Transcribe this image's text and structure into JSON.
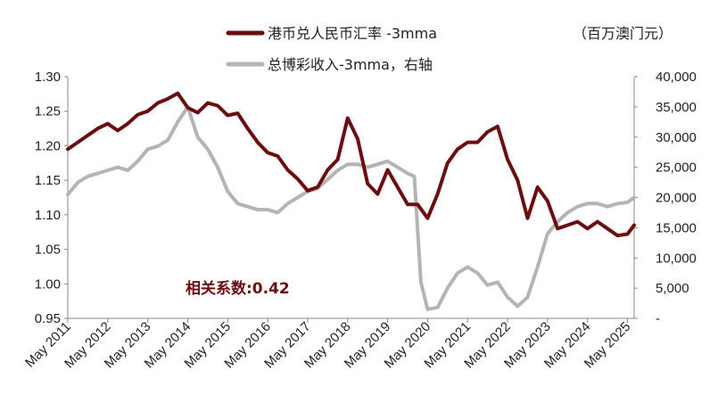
{
  "chart_data": {
    "type": "line",
    "title": "",
    "right_axis_unit": "（百万澳门元）",
    "annotation": "相关系数:0.42",
    "colors": {
      "series1": "#6b0e10",
      "series2": "#b4b4b4",
      "annotation": "#6b0e10"
    },
    "grid": false,
    "legend": "top-center",
    "x_ticks": [
      "May 2011",
      "May 2012",
      "May 2013",
      "May 2014",
      "May 2015",
      "May 2016",
      "May 2017",
      "May 2018",
      "May 2019",
      "May 2020",
      "May 2021",
      "May 2022",
      "May 2023",
      "May 2024",
      "May 2025"
    ],
    "x_range": [
      "2011-05",
      "2025-07"
    ],
    "y_left": {
      "min": 0.95,
      "max": 1.3,
      "ticks": [
        "0.95",
        "1.00",
        "1.05",
        "1.10",
        "1.15",
        "1.20",
        "1.25",
        "1.30"
      ]
    },
    "y_right": {
      "min": 0,
      "max": 40000,
      "ticks": [
        "-",
        "5,000",
        "10,000",
        "15,000",
        "20,000",
        "25,000",
        "30,000",
        "35,000",
        "40,000"
      ]
    },
    "series": [
      {
        "name": "港币兑人民币汇率 -3mma",
        "axis": "left",
        "points": [
          [
            "2011-05",
            1.195
          ],
          [
            "2011-08",
            1.205
          ],
          [
            "2011-11",
            1.215
          ],
          [
            "2012-02",
            1.225
          ],
          [
            "2012-05",
            1.232
          ],
          [
            "2012-08",
            1.222
          ],
          [
            "2012-11",
            1.232
          ],
          [
            "2013-02",
            1.245
          ],
          [
            "2013-05",
            1.25
          ],
          [
            "2013-08",
            1.262
          ],
          [
            "2013-11",
            1.268
          ],
          [
            "2014-02",
            1.276
          ],
          [
            "2014-05",
            1.255
          ],
          [
            "2014-08",
            1.248
          ],
          [
            "2014-11",
            1.262
          ],
          [
            "2015-02",
            1.258
          ],
          [
            "2015-05",
            1.244
          ],
          [
            "2015-08",
            1.247
          ],
          [
            "2015-11",
            1.225
          ],
          [
            "2016-02",
            1.205
          ],
          [
            "2016-05",
            1.19
          ],
          [
            "2016-08",
            1.185
          ],
          [
            "2016-11",
            1.165
          ],
          [
            "2017-02",
            1.152
          ],
          [
            "2017-05",
            1.135
          ],
          [
            "2017-08",
            1.14
          ],
          [
            "2017-11",
            1.165
          ],
          [
            "2018-02",
            1.18
          ],
          [
            "2018-05",
            1.24
          ],
          [
            "2018-08",
            1.21
          ],
          [
            "2018-11",
            1.145
          ],
          [
            "2019-02",
            1.13
          ],
          [
            "2019-05",
            1.165
          ],
          [
            "2019-08",
            1.14
          ],
          [
            "2019-11",
            1.115
          ],
          [
            "2020-02",
            1.115
          ],
          [
            "2020-05",
            1.095
          ],
          [
            "2020-08",
            1.13
          ],
          [
            "2020-11",
            1.175
          ],
          [
            "2021-02",
            1.195
          ],
          [
            "2021-05",
            1.205
          ],
          [
            "2021-08",
            1.205
          ],
          [
            "2021-11",
            1.22
          ],
          [
            "2022-02",
            1.228
          ],
          [
            "2022-05",
            1.18
          ],
          [
            "2022-08",
            1.15
          ],
          [
            "2022-11",
            1.095
          ],
          [
            "2023-02",
            1.14
          ],
          [
            "2023-05",
            1.12
          ],
          [
            "2023-08",
            1.08
          ],
          [
            "2023-11",
            1.085
          ],
          [
            "2024-02",
            1.09
          ],
          [
            "2024-05",
            1.08
          ],
          [
            "2024-08",
            1.09
          ],
          [
            "2024-11",
            1.08
          ],
          [
            "2025-02",
            1.07
          ],
          [
            "2025-05",
            1.072
          ],
          [
            "2025-07",
            1.085
          ]
        ]
      },
      {
        "name": "总博彩收入-3mma，右轴",
        "axis": "right",
        "points": [
          [
            "2011-05",
            20500
          ],
          [
            "2011-08",
            22500
          ],
          [
            "2011-11",
            23500
          ],
          [
            "2012-02",
            24000
          ],
          [
            "2012-05",
            24500
          ],
          [
            "2012-08",
            25000
          ],
          [
            "2012-11",
            24500
          ],
          [
            "2013-02",
            26000
          ],
          [
            "2013-05",
            28000
          ],
          [
            "2013-08",
            28500
          ],
          [
            "2013-11",
            29500
          ],
          [
            "2014-02",
            32500
          ],
          [
            "2014-05",
            35000
          ],
          [
            "2014-08",
            30000
          ],
          [
            "2014-11",
            28000
          ],
          [
            "2015-02",
            25000
          ],
          [
            "2015-05",
            21000
          ],
          [
            "2015-08",
            19000
          ],
          [
            "2015-11",
            18500
          ],
          [
            "2016-02",
            18000
          ],
          [
            "2016-05",
            18000
          ],
          [
            "2016-08",
            17500
          ],
          [
            "2016-11",
            19000
          ],
          [
            "2017-02",
            20000
          ],
          [
            "2017-05",
            21000
          ],
          [
            "2017-08",
            21500
          ],
          [
            "2017-11",
            23000
          ],
          [
            "2018-02",
            24500
          ],
          [
            "2018-05",
            25500
          ],
          [
            "2018-08",
            25500
          ],
          [
            "2018-11",
            25000
          ],
          [
            "2019-02",
            25500
          ],
          [
            "2019-05",
            26000
          ],
          [
            "2019-08",
            25000
          ],
          [
            "2019-11",
            24000
          ],
          [
            "2020-01",
            23500
          ],
          [
            "2020-03",
            6000
          ],
          [
            "2020-05",
            1500
          ],
          [
            "2020-08",
            1800
          ],
          [
            "2020-11",
            5000
          ],
          [
            "2021-02",
            7500
          ],
          [
            "2021-05",
            8500
          ],
          [
            "2021-08",
            7500
          ],
          [
            "2021-11",
            5500
          ],
          [
            "2022-02",
            6000
          ],
          [
            "2022-05",
            3500
          ],
          [
            "2022-08",
            2000
          ],
          [
            "2022-11",
            3500
          ],
          [
            "2023-02",
            8500
          ],
          [
            "2023-05",
            14000
          ],
          [
            "2023-08",
            16000
          ],
          [
            "2023-11",
            17500
          ],
          [
            "2024-02",
            18500
          ],
          [
            "2024-05",
            19000
          ],
          [
            "2024-08",
            19000
          ],
          [
            "2024-11",
            18500
          ],
          [
            "2025-02",
            19000
          ],
          [
            "2025-05",
            19200
          ],
          [
            "2025-07",
            20000
          ]
        ]
      }
    ]
  }
}
